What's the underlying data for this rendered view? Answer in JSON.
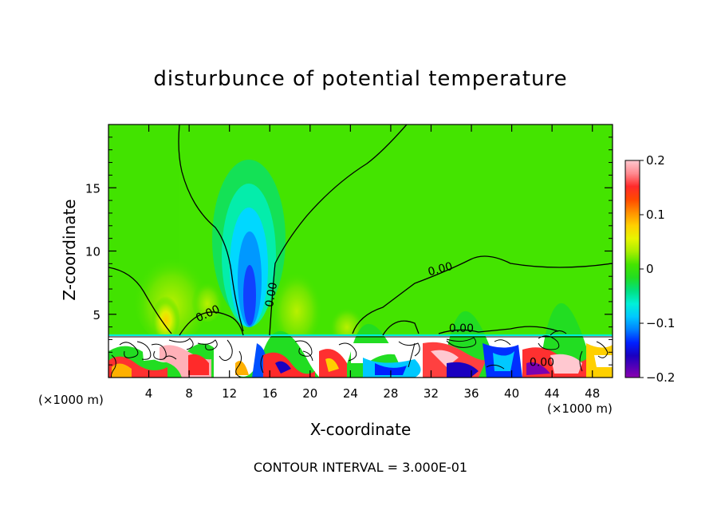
{
  "chart_data": {
    "type": "heatmap",
    "title": "disturbunce of potential temperature",
    "xlabel": "X-coordinate",
    "ylabel": "Z-coordinate",
    "x_unit": "(×1000 m)",
    "x_unit_right": "(×1000 m)",
    "xlim": [
      0,
      50
    ],
    "ylim": [
      0,
      20
    ],
    "xticks": [
      4,
      8,
      12,
      16,
      20,
      24,
      28,
      32,
      36,
      40,
      44,
      48
    ],
    "yticks": [
      5,
      10,
      15
    ],
    "colorbar": {
      "range": [
        -0.2,
        0.2
      ],
      "tick_labels": [
        "0.2",
        "0.1",
        "0",
        "−0.1",
        "−0.2"
      ],
      "tick_values": [
        0.2,
        0.1,
        0,
        -0.1,
        -0.2
      ],
      "colors": [
        "#ffb6c1",
        "#ff6e7a",
        "#ff2a2a",
        "#ff3c00",
        "#ff7a00",
        "#ffb000",
        "#ffdf00",
        "#e8f500",
        "#b8f000",
        "#7eea00",
        "#44e400",
        "#22dd22",
        "#00dd55",
        "#00ee99",
        "#00f0d8",
        "#00d8ff",
        "#009cff",
        "#0050ff",
        "#0000e0",
        "#2a00b0",
        "#6a00b0",
        "#9a00b0"
      ]
    },
    "contour_labels": [
      {
        "text": "0.00",
        "x": 10,
        "z": 4.8
      },
      {
        "text": "0.00",
        "x": 16.5,
        "z": 6.5
      },
      {
        "text": "0.00",
        "x": 33,
        "z": 8.3
      },
      {
        "text": "0.00",
        "x": 35,
        "z": 3.6
      },
      {
        "text": "0.00",
        "x": 43,
        "z": 0.9
      }
    ],
    "contour_interval_text": "CONTOUR INTERVAL = 3.000E-01"
  }
}
